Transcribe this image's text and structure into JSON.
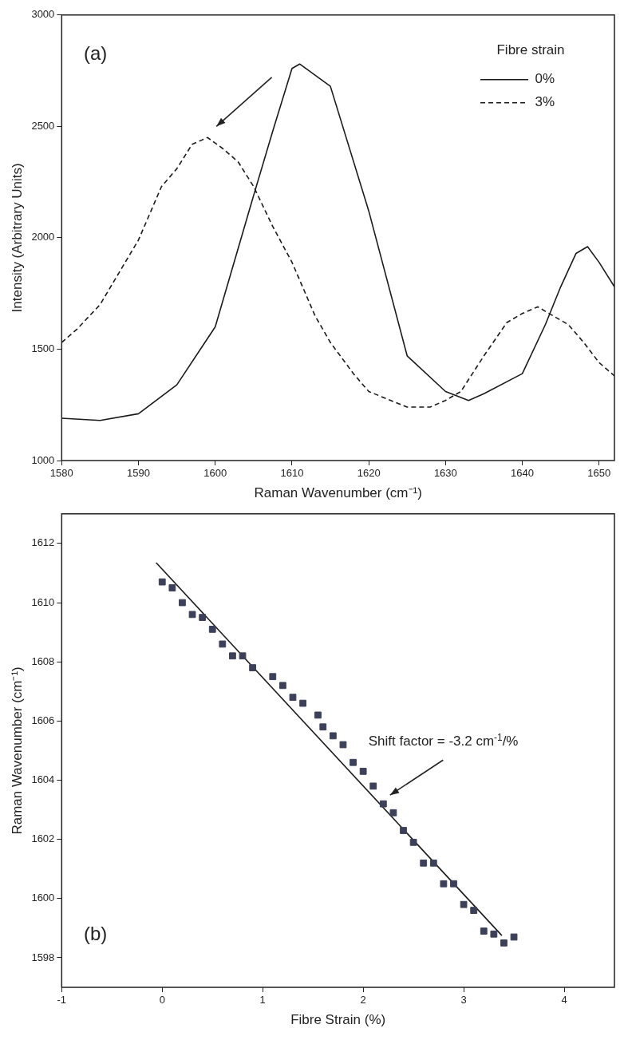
{
  "chart_data": [
    {
      "type": "line",
      "xlabel": "Raman Wavenumber (cm⁻¹)",
      "ylabel": "Intensity (Arbitrary Units)",
      "legend_title": "Fibre strain",
      "legend": "top right",
      "grid": false,
      "marker": "none",
      "xlim": [
        1580,
        1652
      ],
      "xticks": [
        1580,
        1590,
        1600,
        1610,
        1620,
        1630,
        1640,
        1650
      ],
      "ylim": [
        1000,
        3000
      ],
      "yticks": [
        1000,
        1500,
        2000,
        2500,
        3000
      ],
      "annotations": [
        "(a)"
      ],
      "series": [
        {
          "name": "0%",
          "color": "#1a1a1a",
          "line_style": "solid",
          "x": [
            1580,
            1585,
            1590,
            1595,
            1600,
            1605,
            1607.5,
            1610,
            1611,
            1613,
            1615,
            1620,
            1625,
            1630,
            1633,
            1635,
            1640,
            1643,
            1645,
            1647,
            1648.5,
            1650,
            1652
          ],
          "values": [
            1190,
            1180,
            1210,
            1340,
            1600,
            2190,
            2480,
            2760,
            2780,
            2730,
            2680,
            2120,
            1470,
            1310,
            1270,
            1300,
            1390,
            1610,
            1780,
            1930,
            1960,
            1890,
            1780
          ]
        },
        {
          "name": "3%",
          "color": "#1a1a1a",
          "line_style": "dashed",
          "x": [
            1580,
            1582,
            1585,
            1590,
            1593,
            1595,
            1597,
            1599,
            1601,
            1603,
            1605,
            1607.5,
            1610,
            1613,
            1615,
            1618,
            1620,
            1625,
            1628,
            1630,
            1632,
            1635,
            1638,
            1640,
            1642,
            1644,
            1646,
            1648,
            1650,
            1652
          ],
          "values": [
            1530,
            1590,
            1700,
            1990,
            2230,
            2310,
            2420,
            2450,
            2400,
            2340,
            2230,
            2050,
            1890,
            1650,
            1530,
            1390,
            1310,
            1240,
            1240,
            1270,
            1310,
            1470,
            1620,
            1660,
            1690,
            1650,
            1610,
            1530,
            1440,
            1380
          ]
        }
      ]
    },
    {
      "type": "scatter",
      "xlabel": "Fibre Strain (%)",
      "ylabel": "Raman Wavenumber (cm⁻¹)",
      "grid": false,
      "xlim": [
        -1,
        4.5
      ],
      "xticks": [
        -1,
        0,
        1,
        2,
        3,
        4
      ],
      "ylim": [
        1597,
        1613
      ],
      "yticks": [
        1598,
        1600,
        1602,
        1604,
        1606,
        1608,
        1610,
        1612
      ],
      "annotations": [
        "(b)",
        "Shift factor = -3.2 cm$^{-1}$/%"
      ],
      "series": [
        {
          "color": "#3c4058",
          "marker": "square",
          "x": [
            0,
            0.1,
            0.2,
            0.3,
            0.4,
            0.5,
            0.6,
            0.7,
            0.8,
            0.9,
            1.1,
            1.2,
            1.3,
            1.4,
            1.55,
            1.6,
            1.7,
            1.8,
            1.9,
            2.0,
            2.1,
            2.2,
            2.3,
            2.4,
            2.5,
            2.6,
            2.7,
            2.8,
            2.9,
            3.0,
            3.1,
            3.2,
            3.3,
            3.4,
            3.5
          ],
          "values": [
            1610.7,
            1610.5,
            1610.0,
            1609.6,
            1609.5,
            1609.1,
            1608.6,
            1608.2,
            1608.2,
            1607.8,
            1607.5,
            1607.2,
            1606.8,
            1606.6,
            1606.2,
            1605.8,
            1605.5,
            1605.2,
            1604.6,
            1604.3,
            1603.8,
            1603.2,
            1602.9,
            1602.3,
            1601.9,
            1601.2,
            1601.2,
            1600.5,
            1600.5,
            1599.8,
            1599.6,
            1598.9,
            1598.8,
            1598.5,
            1598.7
          ]
        },
        {
          "type": "line",
          "color": "#1a1a1a",
          "marker": "none",
          "x": [
            -0.06,
            3.38
          ],
          "values": [
            1611.35,
            1598.75
          ]
        }
      ]
    }
  ]
}
